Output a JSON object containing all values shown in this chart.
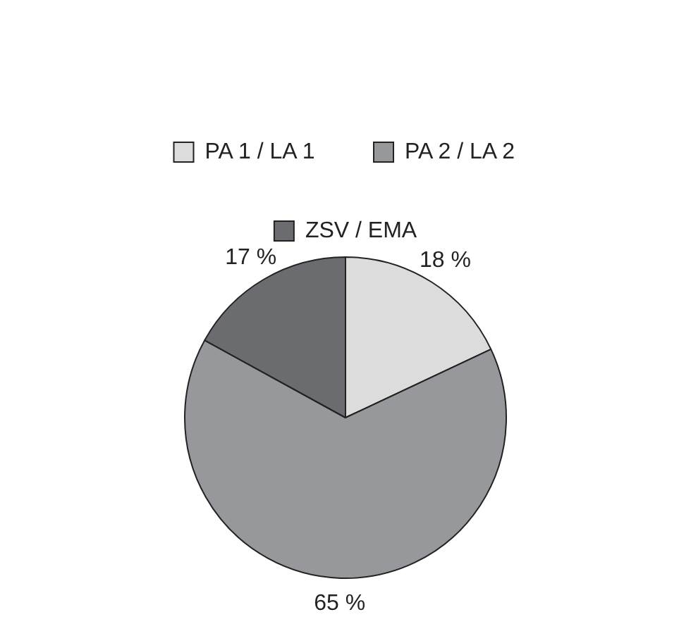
{
  "chart_data": {
    "type": "pie",
    "categories": [
      "PA 1 / LA 1",
      "PA 2 / LA 2",
      "ZSV / EMA"
    ],
    "values": [
      18,
      65,
      17
    ],
    "colors": [
      "#dcdcdc",
      "#97989c",
      "#6b6c70"
    ],
    "value_labels": [
      "18 %",
      "65 %",
      "17 %"
    ],
    "legend": "top"
  }
}
